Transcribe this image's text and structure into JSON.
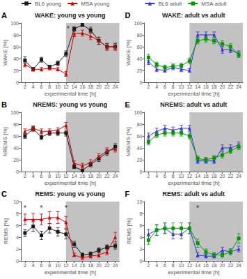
{
  "chart_data": [
    {
      "type": "line",
      "panel_label": "A",
      "title": "WAKE: young vs young",
      "xlabel": "experimental time [h]",
      "ylabel": "WAKE [%]",
      "x": [
        2,
        4,
        6,
        8,
        10,
        12,
        14,
        16,
        18,
        20,
        22,
        24
      ],
      "xlim": [
        1,
        25
      ],
      "xticks": [
        2,
        4,
        6,
        8,
        10,
        12,
        14,
        16,
        18,
        20,
        22,
        24
      ],
      "ylim": [
        0,
        100
      ],
      "yticks": [
        0,
        20,
        40,
        60,
        80,
        100
      ],
      "grid": false,
      "legend": "top",
      "shade": {
        "x": [
          12,
          25
        ],
        "color": "#999999"
      },
      "annotations": [
        {
          "text": "*",
          "x": 12.5,
          "y": 97
        }
      ],
      "series": [
        {
          "name": "BL6 young",
          "color": "#1a1a1a",
          "marker": "square",
          "values": [
            37,
            22,
            38,
            26,
            32,
            48,
            90,
            97,
            88,
            70,
            60,
            60
          ],
          "yerr": [
            6,
            3,
            4,
            3,
            4,
            5,
            4,
            3,
            5,
            6,
            5,
            5
          ]
        },
        {
          "name": "MSA young",
          "color": "#cc0000",
          "marker": "triangle",
          "values": [
            30,
            22,
            22,
            24,
            22,
            14,
            82,
            83,
            78,
            70,
            60,
            60
          ],
          "yerr": [
            4,
            3,
            3,
            3,
            3,
            4,
            5,
            5,
            6,
            6,
            6,
            6
          ]
        }
      ]
    },
    {
      "type": "line",
      "panel_label": "B",
      "title": "NREMS: young vs young",
      "xlabel": "experimental time [h]",
      "ylabel": "NREMS [%]",
      "x": [
        2,
        4,
        6,
        8,
        10,
        12,
        14,
        16,
        18,
        20,
        22,
        24
      ],
      "xlim": [
        1,
        25
      ],
      "xticks": [
        2,
        4,
        6,
        8,
        10,
        12,
        14,
        16,
        18,
        20,
        22,
        24
      ],
      "ylim": [
        0,
        100
      ],
      "yticks": [
        0,
        20,
        40,
        60,
        80,
        100
      ],
      "grid": false,
      "shade": {
        "x": [
          12,
          25
        ],
        "color": "#999999"
      },
      "annotations": [],
      "series": [
        {
          "name": "BL6 young",
          "color": "#1a1a1a",
          "marker": "square",
          "values": [
            60,
            72,
            58,
            65,
            65,
            65,
            8,
            2,
            12,
            22,
            32,
            42
          ],
          "yerr": [
            4,
            4,
            4,
            4,
            4,
            5,
            3,
            2,
            4,
            5,
            5,
            5
          ]
        },
        {
          "name": "MSA young",
          "color": "#cc0000",
          "marker": "triangle",
          "values": [
            68,
            73,
            68,
            68,
            70,
            78,
            14,
            10,
            15,
            25,
            35,
            38
          ],
          "yerr": [
            4,
            4,
            4,
            4,
            4,
            5,
            4,
            4,
            5,
            5,
            5,
            5
          ]
        }
      ]
    },
    {
      "type": "line",
      "panel_label": "C",
      "title": "REMS: young vs young",
      "xlabel": "experimental time [h]",
      "ylabel": "REMS [%]",
      "x": [
        2,
        4,
        6,
        8,
        10,
        12,
        14,
        16,
        18,
        20,
        22,
        24
      ],
      "xlim": [
        1,
        25
      ],
      "xticks": [
        2,
        4,
        6,
        8,
        10,
        12,
        14,
        16,
        18,
        20,
        22,
        24
      ],
      "ylim": [
        0,
        10
      ],
      "yticks": [
        0,
        2,
        4,
        6,
        8,
        10
      ],
      "grid": false,
      "shade": {
        "x": [
          12,
          25
        ],
        "color": "#999999"
      },
      "annotations": [
        {
          "text": "*",
          "x": 2,
          "y": 9.6
        },
        {
          "text": "*",
          "x": 6,
          "y": 9.6
        },
        {
          "text": "*",
          "x": 12,
          "y": 9.6
        }
      ],
      "series": [
        {
          "name": "BL6 young",
          "color": "#1a1a1a",
          "marker": "square",
          "values": [
            4.7,
            5.8,
            4.3,
            5.5,
            4.9,
            4.5,
            2.8,
            1.0,
            1.2,
            1.8,
            2.3,
            2.5
          ],
          "yerr": [
            0.6,
            0.8,
            0.7,
            0.8,
            0.7,
            0.8,
            0.5,
            0.3,
            0.3,
            0.4,
            0.4,
            0.5
          ]
        },
        {
          "name": "MSA young",
          "color": "#cc0000",
          "marker": "triangle",
          "values": [
            7.0,
            7.0,
            7.0,
            7.3,
            7.3,
            6.5,
            1.0,
            0.5,
            0.8,
            1.0,
            1.5,
            4.0
          ],
          "yerr": [
            0.9,
            1.0,
            0.9,
            1.0,
            1.0,
            1.0,
            0.3,
            0.2,
            0.3,
            0.4,
            0.5,
            0.8
          ]
        }
      ]
    },
    {
      "type": "line",
      "panel_label": "D",
      "title": "WAKE: adult vs adult",
      "xlabel": "experimental time [h]",
      "ylabel": "WAKE [%]",
      "x": [
        2,
        4,
        6,
        8,
        10,
        12,
        14,
        16,
        18,
        20,
        22,
        24
      ],
      "xlim": [
        1,
        25
      ],
      "xticks": [
        2,
        4,
        6,
        8,
        10,
        12,
        14,
        16,
        18,
        20,
        22,
        24
      ],
      "ylim": [
        0,
        100
      ],
      "yticks": [
        0,
        20,
        40,
        60,
        80,
        100
      ],
      "grid": false,
      "legend": "top",
      "shade": {
        "x": [
          12,
          25
        ],
        "color": "#999999"
      },
      "annotations": [],
      "series": [
        {
          "name": "BL6 adult",
          "color": "#3333dd",
          "marker": "triangle",
          "values": [
            35,
            22,
            20,
            25,
            22,
            20,
            80,
            80,
            80,
            55,
            55,
            48
          ],
          "yerr": [
            5,
            4,
            3,
            4,
            4,
            3,
            5,
            5,
            5,
            6,
            5,
            5
          ]
        },
        {
          "name": "MSA adult",
          "color": "#009900",
          "marker": "square",
          "values": [
            42,
            30,
            25,
            27,
            28,
            36,
            70,
            73,
            70,
            65,
            60,
            47
          ],
          "yerr": [
            5,
            4,
            4,
            4,
            4,
            5,
            5,
            5,
            5,
            5,
            5,
            5
          ]
        }
      ]
    },
    {
      "type": "line",
      "panel_label": "E",
      "title": "NREMS: adult vs adult",
      "xlabel": "experimental time [h]",
      "ylabel": "NREMS [%]",
      "x": [
        2,
        4,
        6,
        8,
        10,
        12,
        14,
        16,
        18,
        20,
        22,
        24
      ],
      "xlim": [
        1,
        25
      ],
      "xticks": [
        2,
        4,
        6,
        8,
        10,
        12,
        14,
        16,
        18,
        20,
        22,
        24
      ],
      "ylim": [
        0,
        100
      ],
      "yticks": [
        0,
        20,
        40,
        60,
        80,
        100
      ],
      "grid": false,
      "shade": {
        "x": [
          12,
          25
        ],
        "color": "#999999"
      },
      "annotations": [],
      "series": [
        {
          "name": "BL6 adult",
          "color": "#3333dd",
          "marker": "triangle",
          "values": [
            60,
            68,
            73,
            70,
            73,
            73,
            18,
            18,
            18,
            40,
            40,
            45
          ],
          "yerr": [
            5,
            5,
            5,
            5,
            5,
            5,
            4,
            4,
            4,
            5,
            5,
            5
          ]
        },
        {
          "name": "MSA adult",
          "color": "#009900",
          "marker": "square",
          "values": [
            50,
            62,
            65,
            65,
            65,
            60,
            22,
            20,
            23,
            28,
            35,
            42
          ],
          "yerr": [
            5,
            5,
            5,
            5,
            5,
            5,
            4,
            4,
            4,
            5,
            5,
            5
          ]
        }
      ]
    },
    {
      "type": "line",
      "panel_label": "F",
      "title": "REMS: adult vs adult",
      "xlabel": "experimental time [h]",
      "ylabel": "REMS [%]",
      "x": [
        2,
        4,
        6,
        8,
        10,
        12,
        14,
        16,
        18,
        20,
        22,
        24
      ],
      "xlim": [
        1,
        25
      ],
      "xticks": [
        2,
        4,
        6,
        8,
        10,
        12,
        14,
        16,
        18,
        20,
        22,
        24
      ],
      "ylim": [
        0,
        10
      ],
      "yticks": [
        0,
        2,
        4,
        6,
        8,
        10
      ],
      "grid": false,
      "shade": {
        "x": [
          12,
          25
        ],
        "color": "#999999"
      },
      "annotations": [
        {
          "text": "*",
          "x": 14,
          "y": 9.6
        }
      ],
      "series": [
        {
          "name": "BL6 adult",
          "color": "#3333dd",
          "marker": "triangle",
          "values": [
            4.5,
            5.2,
            5.5,
            4.5,
            4.5,
            5.5,
            1.0,
            0.8,
            0.8,
            1.8,
            1.5,
            2.0
          ],
          "yerr": [
            0.8,
            0.9,
            0.9,
            0.8,
            0.8,
            0.9,
            0.4,
            0.3,
            0.3,
            0.5,
            0.5,
            0.5
          ]
        },
        {
          "name": "MSA adult",
          "color": "#009900",
          "marker": "square",
          "values": [
            3.5,
            5.2,
            5.5,
            5.5,
            5.5,
            5.5,
            3.0,
            1.5,
            1.0,
            1.0,
            1.5,
            3.8
          ],
          "yerr": [
            0.7,
            0.9,
            0.9,
            0.9,
            0.9,
            0.9,
            0.7,
            0.5,
            0.4,
            0.4,
            0.5,
            0.8
          ]
        }
      ]
    }
  ]
}
